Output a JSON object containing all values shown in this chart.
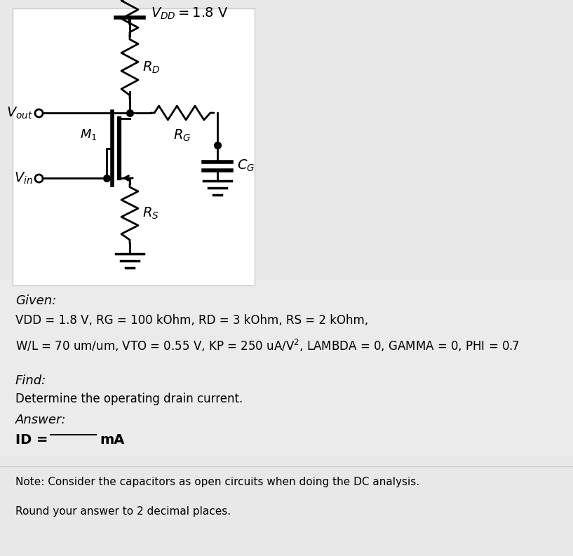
{
  "bg_color": "#e8e8e8",
  "circuit_box_color": "#ffffff",
  "given_label": "Given:",
  "given_text1": "VDD = 1.8 V, RG = 100 kOhm, RD = 3 kOhm, RS = 2 kOhm,",
  "find_label": "Find:",
  "find_text": "Determine the operating drain current.",
  "answer_label": "Answer:",
  "note_text": "Note: Consider the capacitors as open circuits when doing the DC analysis.",
  "round_text": "Round your answer to 2 decimal places.",
  "text_color": "#000000",
  "line_color": "#000000",
  "vdd_label": "= 1.8 V",
  "rd_label": "R_D",
  "rg_label": "R_G",
  "rs_label": "R_S",
  "cg_label": "C_G",
  "m1_label": "M_1",
  "vout_label": "V_out",
  "vin_label": "V_in"
}
